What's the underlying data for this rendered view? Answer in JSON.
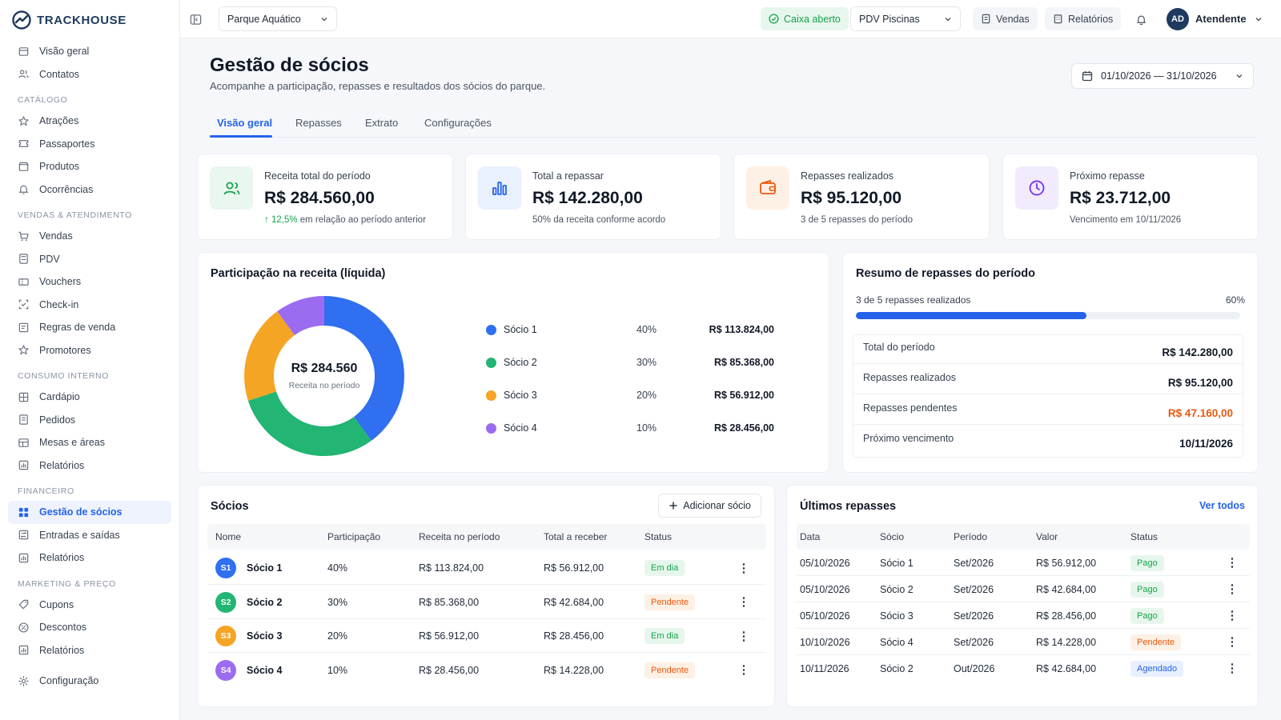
{
  "brand": {
    "name": "TRACKHOUSE"
  },
  "sidebar": {
    "top_items": [
      {
        "label": "Visão geral",
        "icon": "home-icon"
      },
      {
        "label": "Contatos",
        "icon": "users-icon"
      }
    ],
    "sections": [
      {
        "title": "CATÁLOGO",
        "items": [
          {
            "label": "Atrações",
            "icon": "attraction-icon"
          },
          {
            "label": "Passaportes",
            "icon": "ticket-icon"
          },
          {
            "label": "Produtos",
            "icon": "box-icon"
          },
          {
            "label": "Ocorrências",
            "icon": "alert-icon"
          }
        ]
      },
      {
        "title": "VENDAS & ATENDIMENTO",
        "items": [
          {
            "label": "Vendas",
            "icon": "cart-icon"
          },
          {
            "label": "PDV",
            "icon": "pos-icon"
          },
          {
            "label": "Vouchers",
            "icon": "voucher-icon"
          },
          {
            "label": "Check-in",
            "icon": "checkin-icon"
          },
          {
            "label": "Regras de venda",
            "icon": "rules-icon"
          },
          {
            "label": "Promotores",
            "icon": "star-icon"
          }
        ]
      },
      {
        "title": "CONSUMO INTERNO",
        "items": [
          {
            "label": "Cardápio",
            "icon": "menu-grid-icon"
          },
          {
            "label": "Pedidos",
            "icon": "orders-icon"
          },
          {
            "label": "Mesas e áreas",
            "icon": "table-icon"
          },
          {
            "label": "Relatórios",
            "icon": "report-icon"
          }
        ]
      },
      {
        "title": "FINANCEIRO",
        "items": [
          {
            "label": "Gestão de sócios",
            "icon": "grid-icon",
            "active": true
          },
          {
            "label": "Entradas e saídas",
            "icon": "cashflow-icon"
          },
          {
            "label": "Relatórios",
            "icon": "report-icon"
          }
        ]
      },
      {
        "title": "MARKETING & PREÇO",
        "items": [
          {
            "label": "Cupons",
            "icon": "coupon-icon"
          },
          {
            "label": "Descontos",
            "icon": "discount-icon"
          },
          {
            "label": "Relatórios",
            "icon": "report-icon"
          }
        ]
      }
    ],
    "footer_item": {
      "label": "Configuração",
      "icon": "gear-icon"
    }
  },
  "topbar": {
    "unit_select": "Parque Aquático",
    "cash_status": "Caixa aberto",
    "pdv_select": "PDV Piscinas",
    "sales_button": "Vendas",
    "reports_button": "Relatórios",
    "user_initials": "AD",
    "user_name": "Atendente"
  },
  "page": {
    "title": "Gestão de sócios",
    "subtitle": "Acompanhe a participação, repasses e resultados dos sócios do parque.",
    "date_range": "01/10/2026 — 31/10/2026",
    "tabs": [
      "Visão geral",
      "Repasses",
      "Extrato",
      "Configurações"
    ]
  },
  "kpis": [
    {
      "label": "Receita total do período",
      "value": "R$ 284.560,00",
      "note_highlight": "12,5%",
      "note": "em relação ao período anterior",
      "icon": "users-icon",
      "color": "#16a34a",
      "bg": "#e9f7ef"
    },
    {
      "label": "Total a repassar",
      "value": "R$ 142.280,00",
      "note_highlight": "",
      "note": "50% da receita conforme acordo",
      "icon": "bar-chart-icon",
      "color": "#2563eb",
      "bg": "#e9f0fe"
    },
    {
      "label": "Repasses realizados",
      "value": "R$ 95.120,00",
      "note_highlight": "",
      "note": "3 de 5 repasses do período",
      "icon": "wallet-icon",
      "color": "#ea580c",
      "bg": "#fdf0e4"
    },
    {
      "label": "Próximo repasse",
      "value": "R$ 23.712,00",
      "note_highlight": "",
      "note": "Vencimento em 10/11/2026",
      "icon": "clock-icon",
      "color": "#7c3aed",
      "bg": "#f1ebfd"
    }
  ],
  "participation": {
    "title": "Participação na receita (líquida)",
    "center_value": "R$ 284.560",
    "center_label": "Receita no período"
  },
  "chart_data": {
    "type": "pie",
    "categories": [
      "Sócio 1",
      "Sócio 2",
      "Sócio 3",
      "Sócio 4"
    ],
    "values": [
      40,
      30,
      20,
      10
    ],
    "percent_labels": [
      "40%",
      "30%",
      "20%",
      "10%"
    ],
    "amounts": [
      "R$ 113.824,00",
      "R$ 85.368,00",
      "R$ 56.912,00",
      "R$ 28.456,00"
    ],
    "colors": [
      "#2f6ff0",
      "#22b573",
      "#f5a524",
      "#9b6cf0"
    ],
    "title": "Participação na receita (líquida)"
  },
  "summary": {
    "title": "Resumo de repasses do período",
    "progress_label": "3 de 5 repasses realizados",
    "progress_pct": "60%",
    "progress_value": 0.6,
    "rows": [
      {
        "label": "Total do período",
        "value": "R$ 142.280,00",
        "tone": ""
      },
      {
        "label": "Repasses realizados",
        "value": "R$ 95.120,00",
        "tone": ""
      },
      {
        "label": "Repasses pendentes",
        "value": "R$ 47.160,00",
        "tone": "orange"
      },
      {
        "label": "Próximo vencimento",
        "value": "10/11/2026",
        "tone": ""
      }
    ]
  },
  "partners": {
    "title": "Sócios",
    "add_button": "Adicionar sócio",
    "columns": [
      "Nome",
      "Participação",
      "Receita no período",
      "Total a receber",
      "Status"
    ],
    "rows": [
      {
        "initials": "S1",
        "name": "Sócio 1",
        "share": "40%",
        "revenue": "R$ 113.824,00",
        "receivable": "R$ 56.912,00",
        "status": "Em dia",
        "tone": "green",
        "color": "#2f6ff0"
      },
      {
        "initials": "S2",
        "name": "Sócio 2",
        "share": "30%",
        "revenue": "R$ 85.368,00",
        "receivable": "R$ 42.684,00",
        "status": "Pendente",
        "tone": "orange",
        "color": "#22b573"
      },
      {
        "initials": "S3",
        "name": "Sócio 3",
        "share": "20%",
        "revenue": "R$ 56.912,00",
        "receivable": "R$ 28.456,00",
        "status": "Em dia",
        "tone": "green",
        "color": "#f5a524"
      },
      {
        "initials": "S4",
        "name": "Sócio 4",
        "share": "10%",
        "revenue": "R$ 28.456,00",
        "receivable": "R$ 14.228,00",
        "status": "Pendente",
        "tone": "orange",
        "color": "#9b6cf0"
      }
    ]
  },
  "payouts": {
    "title": "Últimos repasses",
    "view_all": "Ver todos",
    "columns": [
      "Data",
      "Sócio",
      "Período",
      "Valor",
      "Status"
    ],
    "rows": [
      {
        "date": "05/10/2026",
        "partner": "Sócio 1",
        "period": "Set/2026",
        "value": "R$ 56.912,00",
        "status": "Pago",
        "tone": "green"
      },
      {
        "date": "05/10/2026",
        "partner": "Sócio 2",
        "period": "Set/2026",
        "value": "R$ 42.684,00",
        "status": "Pago",
        "tone": "green"
      },
      {
        "date": "05/10/2026",
        "partner": "Sócio 3",
        "period": "Set/2026",
        "value": "R$ 28.456,00",
        "status": "Pago",
        "tone": "green"
      },
      {
        "date": "10/10/2026",
        "partner": "Sócio 4",
        "period": "Set/2026",
        "value": "R$ 14.228,00",
        "status": "Pendente",
        "tone": "orange"
      },
      {
        "date": "10/11/2026",
        "partner": "Sócio 2",
        "period": "Out/2026",
        "value": "R$ 42.684,00",
        "status": "Agendado",
        "tone": "blue"
      }
    ]
  }
}
